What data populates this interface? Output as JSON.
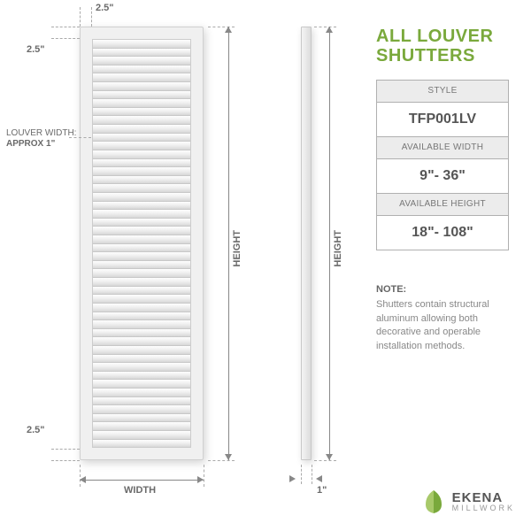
{
  "title_line1": "ALL LOUVER",
  "title_line2": "SHUTTERS",
  "spec_table": {
    "style_hdr": "STYLE",
    "style_val": "TFP001LV",
    "width_hdr": "AVAILABLE WIDTH",
    "width_val": "9\"- 36\"",
    "height_hdr": "AVAILABLE HEIGHT",
    "height_val": "18\"- 108\""
  },
  "note": {
    "hdr": "NOTE:",
    "body": "Shutters contain structural aluminum allowing both decorative and operable installation methods."
  },
  "dims": {
    "top_margin": "2.5\"",
    "side_margin": "2.5\"",
    "bottom_margin": "2.5\"",
    "louver_note_label": "LOUVER WIDTH:",
    "louver_note_val": "APPROX 1\"",
    "width_label": "WIDTH",
    "height_label": "HEIGHT",
    "height_label2": "HEIGHT",
    "profile_width": "1\""
  },
  "logo": {
    "brand": "EKENA",
    "sub": "MILLWORK"
  },
  "colors": {
    "accent": "#7aa93c",
    "text": "#6a6a6a",
    "border": "#b0b0b0"
  },
  "louver_count": 48
}
